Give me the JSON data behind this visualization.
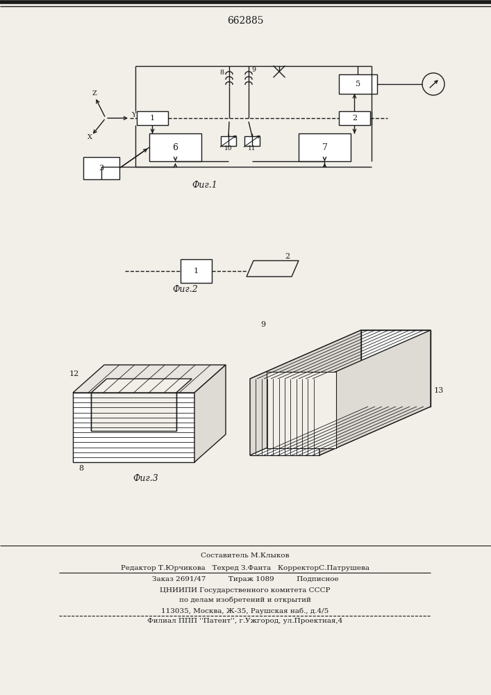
{
  "title": "662885",
  "fig1_label": "Фиг.1",
  "fig2_label": "Фиг.2",
  "fig3_label": "Фиг.3",
  "bg_color": "#f2efe9",
  "line_color": "#1a1a1a",
  "footer_lines": [
    "Составитель М.Клыков",
    "Редактор Т.Юрчикова   Техред З.Фанта   КорректорС.Патрушева",
    "Заказ 2691/47          Тираж 1089          Подписное",
    "ЦНИИПИ Государственного комитета СССР",
    "по делам изобретений и открытий",
    "113035, Москва, Ж-35, Раушская наб., д.4/5",
    "Филиал ППП ''Патент'', г.Ужгород, ул.Проектная,4"
  ]
}
